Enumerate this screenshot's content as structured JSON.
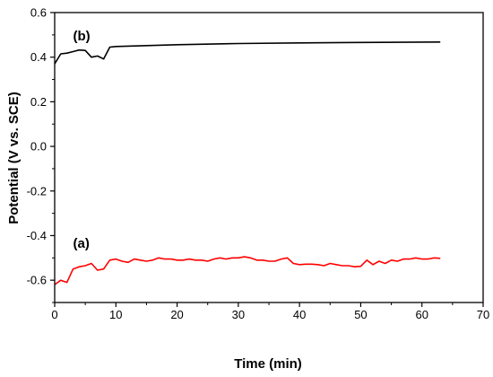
{
  "chart_data": {
    "type": "line",
    "xlabel": "Time (min)",
    "ylabel": "Potential (V vs. SCE)",
    "xlim": [
      0,
      70
    ],
    "ylim": [
      -0.7,
      0.6
    ],
    "xticks": [
      0,
      10,
      20,
      30,
      40,
      50,
      60,
      70
    ],
    "xtick_labels": [
      "0",
      "10",
      "20",
      "30",
      "40",
      "50",
      "60",
      "70"
    ],
    "yticks": [
      -0.6,
      -0.4,
      -0.2,
      0.0,
      0.2,
      0.4,
      0.6
    ],
    "ytick_labels": [
      "-0.6",
      "-0.4",
      "-0.2",
      "0.0",
      "0.2",
      "0.4",
      "0.6"
    ],
    "grid": false,
    "legend": "none",
    "annotations": [
      {
        "text": "(b)",
        "x": 3,
        "y": 0.475
      },
      {
        "text": "(a)",
        "x": 3,
        "y": -0.455
      }
    ],
    "series": [
      {
        "color": "#000000",
        "x": [
          0,
          1,
          2,
          3,
          4,
          5,
          6,
          7,
          8,
          9,
          10,
          15,
          20,
          30,
          40,
          50,
          63
        ],
        "y": [
          0.37,
          0.415,
          0.418,
          0.425,
          0.432,
          0.43,
          0.4,
          0.405,
          0.392,
          0.445,
          0.448,
          0.452,
          0.456,
          0.461,
          0.464,
          0.466,
          0.468
        ]
      },
      {
        "color": "#ff0000",
        "x": [
          0,
          1,
          2,
          3,
          4,
          5,
          6,
          7,
          8,
          9,
          10,
          11,
          12,
          13,
          14,
          15,
          16,
          17,
          18,
          19,
          20,
          21,
          22,
          23,
          24,
          25,
          26,
          27,
          28,
          29,
          30,
          31,
          32,
          33,
          34,
          35,
          36,
          37,
          38,
          39,
          40,
          41,
          42,
          43,
          44,
          45,
          46,
          47,
          48,
          49,
          50,
          51,
          52,
          53,
          54,
          55,
          56,
          57,
          58,
          59,
          60,
          61,
          62,
          63
        ],
        "y": [
          -0.62,
          -0.6,
          -0.61,
          -0.55,
          -0.54,
          -0.535,
          -0.525,
          -0.555,
          -0.55,
          -0.51,
          -0.505,
          -0.515,
          -0.52,
          -0.505,
          -0.51,
          -0.515,
          -0.51,
          -0.5,
          -0.505,
          -0.505,
          -0.51,
          -0.51,
          -0.505,
          -0.51,
          -0.51,
          -0.515,
          -0.505,
          -0.5,
          -0.505,
          -0.5,
          -0.5,
          -0.495,
          -0.5,
          -0.51,
          -0.51,
          -0.515,
          -0.515,
          -0.505,
          -0.5,
          -0.525,
          -0.53,
          -0.528,
          -0.528,
          -0.53,
          -0.535,
          -0.525,
          -0.53,
          -0.535,
          -0.535,
          -0.54,
          -0.538,
          -0.51,
          -0.53,
          -0.515,
          -0.525,
          -0.51,
          -0.515,
          -0.505,
          -0.505,
          -0.5,
          -0.505,
          -0.505,
          -0.5,
          -0.502
        ]
      }
    ]
  }
}
